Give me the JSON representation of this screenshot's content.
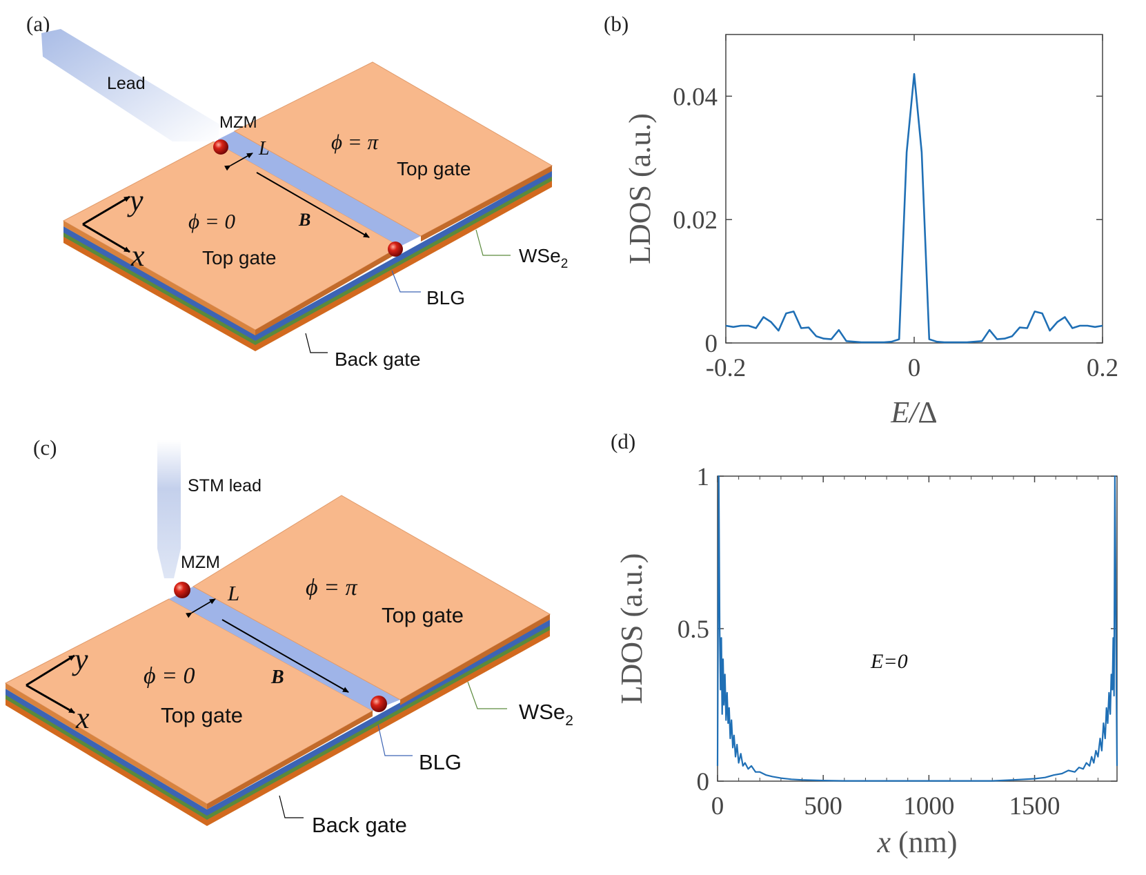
{
  "panels": {
    "a": {
      "label": "(a)",
      "lead": "Lead",
      "mzm": "MZM",
      "length": "L",
      "phi_pi": "ϕ = π",
      "phi_zero": "ϕ = 0",
      "top_gate_right": "Top gate",
      "top_gate_left": "Top gate",
      "field": "B",
      "axis_y": "y",
      "axis_x": "x",
      "wse2": "WSe",
      "wse2_sub": "2",
      "blg": "BLG",
      "back_gate": "Back gate"
    },
    "b": {
      "label": "(b)"
    },
    "c": {
      "label": "(c)",
      "lead": "STM lead",
      "mzm": "MZM",
      "length": "L",
      "phi_pi": "ϕ = π",
      "phi_zero": "ϕ = 0",
      "top_gate_right": "Top gate",
      "top_gate_left": "Top gate",
      "field": "B",
      "axis_y": "y",
      "axis_x": "x",
      "wse2": "WSe",
      "wse2_sub": "2",
      "blg": "BLG",
      "back_gate": "Back gate"
    },
    "d": {
      "label": "(d)",
      "annotation": "E=0"
    }
  },
  "colors": {
    "top_gate": "#f8b88b",
    "top_gate_edge": "#c8763d",
    "blg_channel": "#9fb4e8",
    "layer_blue": "#3c64b4",
    "layer_green": "#5a8a3c",
    "layer_orange": "#d2691e",
    "mzm": "#c0100e",
    "curve": "#1f6fb5",
    "lead_gradient_start": "#a9bce6",
    "lead_gradient_end": "#ffffff"
  },
  "chart_data": [
    {
      "panel": "b",
      "type": "line",
      "xlabel": "E/Δ",
      "ylabel": "LDOS (a.u.)",
      "xlim": [
        -0.2,
        0.2
      ],
      "ylim": [
        0,
        0.05
      ],
      "xticks": [
        -0.2,
        0,
        0.2
      ],
      "xtick_labels": [
        "-0.2",
        "0",
        "0.2"
      ],
      "yticks": [
        0,
        0.02,
        0.04
      ],
      "ytick_labels": [
        "0",
        "0.02",
        "0.04"
      ],
      "series": [
        {
          "x": [
            -0.2,
            -0.192,
            -0.184,
            -0.176,
            -0.168,
            -0.16,
            -0.152,
            -0.144,
            -0.136,
            -0.128,
            -0.12,
            -0.112,
            -0.104,
            -0.096,
            -0.088,
            -0.08,
            -0.072,
            -0.064,
            -0.056,
            -0.048,
            -0.04,
            -0.032,
            -0.024,
            -0.016,
            -0.008,
            0,
            0.008,
            0.016,
            0.024,
            0.032,
            0.04,
            0.048,
            0.056,
            0.064,
            0.072,
            0.08,
            0.088,
            0.096,
            0.104,
            0.112,
            0.12,
            0.128,
            0.136,
            0.144,
            0.152,
            0.16,
            0.168,
            0.176,
            0.184,
            0.192,
            0.2
          ],
          "y": [
            0.0028,
            0.0026,
            0.0028,
            0.0028,
            0.0024,
            0.0042,
            0.0034,
            0.002,
            0.0048,
            0.0051,
            0.0024,
            0.0025,
            0.0011,
            0.0007,
            0.0006,
            0.0021,
            0.0003,
            0.0002,
            0.0001,
            0.0001,
            0.0001,
            0.0001,
            0.0002,
            0.0006,
            0.0309,
            0.0436,
            0.0309,
            0.0006,
            0.0002,
            0.0001,
            0.0001,
            0.0001,
            0.0001,
            0.0002,
            0.0003,
            0.0021,
            0.0006,
            0.0007,
            0.0011,
            0.0025,
            0.0024,
            0.0051,
            0.0048,
            0.002,
            0.0034,
            0.0042,
            0.0024,
            0.0028,
            0.0028,
            0.0026,
            0.0028
          ]
        }
      ]
    },
    {
      "panel": "d",
      "type": "line",
      "xlabel": "x (nm)",
      "ylabel": "LDOS (a.u.)",
      "xlim": [
        0,
        1890
      ],
      "ylim": [
        0,
        1
      ],
      "xticks": [
        0,
        500,
        1000,
        1500
      ],
      "xtick_labels": [
        "0",
        "500",
        "1000",
        "1500"
      ],
      "yticks": [
        0,
        0.5,
        1
      ],
      "ytick_labels": [
        "0",
        "0.5",
        "1"
      ],
      "series": [
        {
          "x": [
            0,
            3,
            6,
            10,
            14,
            18,
            22,
            26,
            30,
            35,
            40,
            45,
            50,
            55,
            60,
            66,
            72,
            78,
            85,
            92,
            100,
            110,
            120,
            130,
            145,
            160,
            180,
            200,
            230,
            260,
            300,
            350,
            400,
            500,
            600,
            700,
            800,
            900,
            1000,
            1100,
            1200,
            1300,
            1400,
            1500,
            1550,
            1590,
            1630,
            1660,
            1690,
            1710,
            1730,
            1745,
            1760,
            1770,
            1780,
            1790,
            1800,
            1810,
            1818,
            1826,
            1834,
            1840,
            1846,
            1852,
            1858,
            1863,
            1868,
            1872,
            1876,
            1880,
            1884,
            1887,
            1890
          ],
          "y": [
            0.05,
            0.6,
            1.0,
            0.5,
            0.3,
            0.47,
            0.22,
            0.4,
            0.25,
            0.35,
            0.2,
            0.29,
            0.19,
            0.24,
            0.14,
            0.2,
            0.11,
            0.15,
            0.08,
            0.12,
            0.06,
            0.09,
            0.05,
            0.06,
            0.04,
            0.05,
            0.03,
            0.03,
            0.02,
            0.015,
            0.01,
            0.006,
            0.004,
            0.002,
            0.001,
            0.001,
            0.001,
            0.001,
            0.001,
            0.001,
            0.001,
            0.001,
            0.004,
            0.008,
            0.012,
            0.02,
            0.025,
            0.035,
            0.03,
            0.045,
            0.04,
            0.06,
            0.05,
            0.08,
            0.06,
            0.1,
            0.08,
            0.14,
            0.1,
            0.19,
            0.14,
            0.24,
            0.19,
            0.29,
            0.22,
            0.35,
            0.3,
            0.47,
            0.28,
            1.0,
            0.6,
            0.3,
            0.05
          ]
        }
      ],
      "annotations": [
        "E=0"
      ]
    }
  ]
}
